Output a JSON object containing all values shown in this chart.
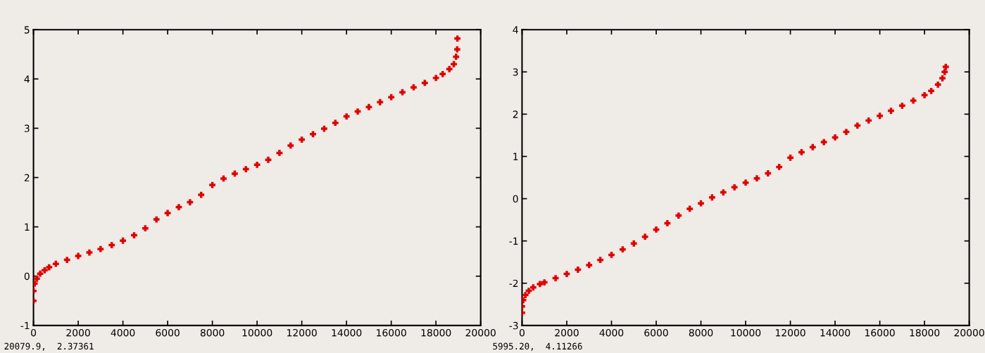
{
  "chart_data": [
    {
      "type": "scatter",
      "marker": "cross",
      "grid": false,
      "xlim": [
        0,
        20000
      ],
      "ylim": [
        -1,
        5
      ],
      "xticks": [
        0,
        2000,
        4000,
        6000,
        8000,
        10000,
        12000,
        14000,
        16000,
        18000,
        20000
      ],
      "yticks": [
        -1,
        0,
        1,
        2,
        3,
        4,
        5
      ],
      "annotations": [
        "20079.9,  2.37361"
      ],
      "series": [
        {
          "color": "#e00000",
          "x": [
            0,
            0,
            50,
            150,
            300,
            500,
            700,
            1000,
            1500,
            2000,
            2500,
            3000,
            3500,
            4000,
            4500,
            5000,
            5500,
            6000,
            6500,
            7000,
            7500,
            8000,
            8500,
            9000,
            9500,
            10000,
            10500,
            11000,
            11500,
            12000,
            12500,
            13000,
            13500,
            14000,
            14500,
            15000,
            15500,
            16000,
            16500,
            17000,
            17500,
            18000,
            18300,
            18600,
            18800,
            18900,
            18950,
            18960
          ],
          "values": [
            -0.5,
            -0.3,
            -0.15,
            -0.05,
            0.05,
            0.12,
            0.18,
            0.25,
            0.33,
            0.41,
            0.48,
            0.55,
            0.63,
            0.72,
            0.83,
            0.97,
            1.15,
            1.28,
            1.4,
            1.5,
            1.65,
            1.85,
            1.98,
            2.08,
            2.17,
            2.26,
            2.36,
            2.5,
            2.65,
            2.77,
            2.88,
            2.99,
            3.11,
            3.24,
            3.34,
            3.43,
            3.53,
            3.63,
            3.73,
            3.83,
            3.92,
            4.02,
            4.1,
            4.2,
            4.3,
            4.45,
            4.6,
            4.82
          ]
        }
      ]
    },
    {
      "type": "scatter",
      "marker": "cross",
      "grid": false,
      "xlim": [
        0,
        20000
      ],
      "ylim": [
        -3,
        4
      ],
      "xticks": [
        0,
        2000,
        4000,
        6000,
        8000,
        10000,
        12000,
        14000,
        16000,
        18000,
        20000
      ],
      "yticks": [
        -3,
        -2,
        -1,
        0,
        1,
        2,
        3,
        4
      ],
      "annotations": [
        "5995.20,  4.11266"
      ],
      "series": [
        {
          "color": "#e00000",
          "x": [
            0,
            0,
            50,
            150,
            300,
            500,
            800,
            1000,
            1500,
            2000,
            2500,
            3000,
            3500,
            4000,
            4500,
            5000,
            5500,
            6000,
            6500,
            7000,
            7500,
            8000,
            8500,
            9000,
            9500,
            10000,
            10500,
            11000,
            11500,
            12000,
            12500,
            13000,
            13500,
            14000,
            14500,
            15000,
            15500,
            16000,
            16500,
            17000,
            17500,
            18000,
            18300,
            18600,
            18800,
            18900,
            18950
          ],
          "values": [
            -2.7,
            -2.55,
            -2.4,
            -2.28,
            -2.18,
            -2.1,
            -2.02,
            -1.98,
            -1.88,
            -1.78,
            -1.68,
            -1.57,
            -1.45,
            -1.33,
            -1.2,
            -1.06,
            -0.9,
            -0.73,
            -0.58,
            -0.4,
            -0.24,
            -0.11,
            0.03,
            0.15,
            0.27,
            0.38,
            0.48,
            0.6,
            0.75,
            0.97,
            1.1,
            1.22,
            1.34,
            1.45,
            1.58,
            1.73,
            1.85,
            1.96,
            2.08,
            2.2,
            2.32,
            2.45,
            2.55,
            2.7,
            2.85,
            3.0,
            3.12
          ]
        }
      ]
    }
  ]
}
